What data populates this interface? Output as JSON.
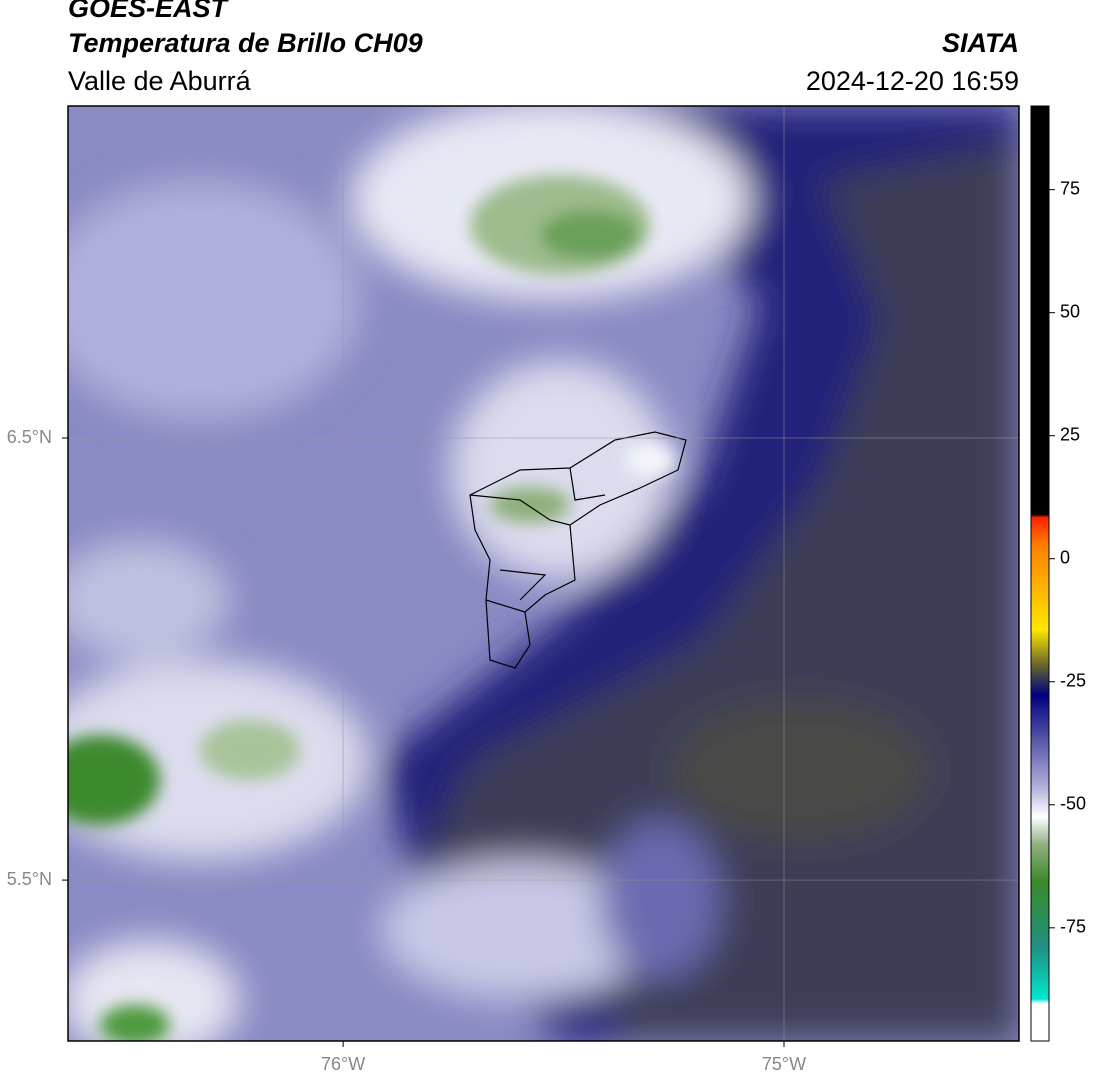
{
  "header": {
    "satellite": "GOES-EAST",
    "product": "Temperatura de Brillo CH09",
    "region": "Valle de Aburrá",
    "source": "SIATA",
    "datetime": "2024-12-20 16:59"
  },
  "map": {
    "xlim": [
      -76.624,
      -74.467
    ],
    "ylim": [
      5.136,
      7.251
    ],
    "xticks": [
      {
        "value": -76,
        "label": "76°W"
      },
      {
        "value": -75,
        "label": "75°W"
      }
    ],
    "yticks": [
      {
        "value": 5.5,
        "label": "5.5°N"
      },
      {
        "value": 6.5,
        "label": "6.5°N"
      }
    ],
    "grid": true
  },
  "colorbar": {
    "lim": [
      -98,
      92
    ],
    "ticks": [
      -75,
      -50,
      -25,
      0,
      25,
      50,
      75
    ]
  }
}
